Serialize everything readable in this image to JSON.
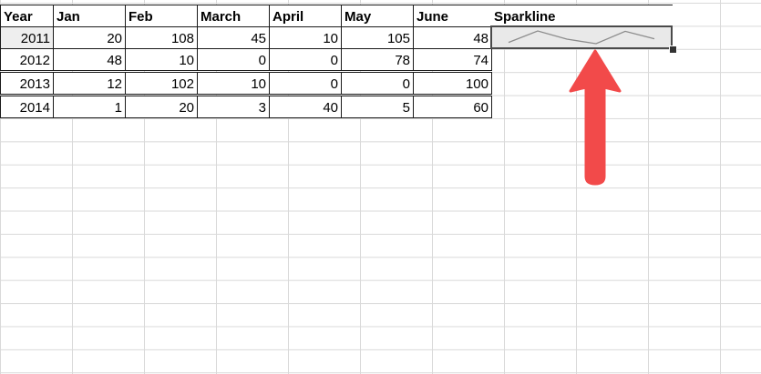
{
  "sheet": {
    "headers": [
      "Year",
      "Jan",
      "Feb",
      "March",
      "April",
      "May",
      "June",
      "Sparkline"
    ],
    "rows": [
      {
        "year": "2011",
        "values": [
          "20",
          "108",
          "45",
          "10",
          "105",
          "48"
        ]
      },
      {
        "year": "2012",
        "values": [
          "48",
          "10",
          "0",
          "0",
          "78",
          "74"
        ]
      },
      {
        "year": "2013",
        "values": [
          "12",
          "102",
          "10",
          "0",
          "0",
          "100"
        ]
      },
      {
        "year": "2014",
        "values": [
          "1",
          "20",
          "3",
          "40",
          "5",
          "60"
        ]
      }
    ]
  },
  "sparkline": {
    "row": "2011",
    "values": [
      20,
      108,
      45,
      10,
      105,
      48
    ],
    "color": "#8c8c8c"
  },
  "annotation": {
    "color": "#f24a4a",
    "icon": "up-arrow-icon"
  }
}
